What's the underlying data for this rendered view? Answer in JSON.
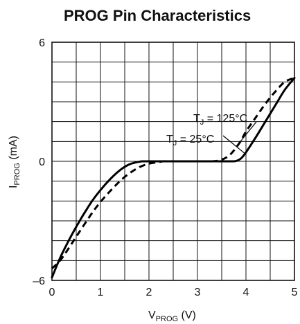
{
  "chart_data": {
    "type": "line",
    "title": "PROG Pin Characteristics",
    "xlabel": {
      "main": "V",
      "sub": "PROG",
      "unit": " (V)"
    },
    "ylabel": {
      "main": "I",
      "sub": "PROG",
      "unit": " (mA)"
    },
    "xlim": [
      0,
      5
    ],
    "ylim": [
      -6,
      6
    ],
    "x_ticks": [
      "0",
      "1",
      "2",
      "3",
      "4",
      "5"
    ],
    "y_ticks": [
      {
        "value": 6,
        "label": "6"
      },
      {
        "value": 0,
        "label": "0"
      },
      {
        "value": -6,
        "label": "–6"
      }
    ],
    "grid": true,
    "series": [
      {
        "name_parts": {
          "main": "T",
          "sub": "J",
          "rest": " = 25°C"
        },
        "style": "solid",
        "x": [
          0,
          0.2,
          0.5,
          0.8,
          1.0,
          1.2,
          1.4,
          1.6,
          1.8,
          1.9,
          2.0,
          2.5,
          3.0,
          3.5,
          3.6,
          3.7,
          3.8,
          3.9,
          4.0,
          4.2,
          4.4,
          4.6,
          4.8,
          5.0
        ],
        "y": [
          -5.85,
          -4.7,
          -3.3,
          -2.1,
          -1.45,
          -0.9,
          -0.45,
          -0.15,
          -0.02,
          0,
          0,
          0,
          0,
          0,
          0,
          0,
          0.02,
          0.15,
          0.45,
          1.2,
          2.0,
          2.8,
          3.6,
          4.2
        ]
      },
      {
        "name_parts": {
          "main": "T",
          "sub": "J",
          "rest": " = 125°C"
        },
        "style": "dashed",
        "x": [
          0,
          0.2,
          0.5,
          0.8,
          1.0,
          1.2,
          1.4,
          1.6,
          1.8,
          2.0,
          2.2,
          2.3,
          2.5,
          3.0,
          3.3,
          3.4,
          3.5,
          3.6,
          3.7,
          3.8,
          3.9,
          4.0,
          4.2,
          4.4,
          4.6,
          4.8,
          5.0
        ],
        "y": [
          -5.4,
          -4.9,
          -3.8,
          -2.7,
          -2.05,
          -1.5,
          -1.0,
          -0.6,
          -0.3,
          -0.12,
          -0.04,
          0,
          0,
          0,
          0,
          0.02,
          0.08,
          0.2,
          0.4,
          0.7,
          1.05,
          1.5,
          2.2,
          2.9,
          3.5,
          4.0,
          4.2
        ]
      }
    ],
    "annotations": [
      {
        "main": "T",
        "sub": "J",
        "rest": " = 125°C",
        "target_series": 1,
        "target_x": 3.88
      },
      {
        "main": "T",
        "sub": "J",
        "rest": " = 25°C",
        "target_series": 0,
        "target_x": 3.98
      }
    ]
  }
}
